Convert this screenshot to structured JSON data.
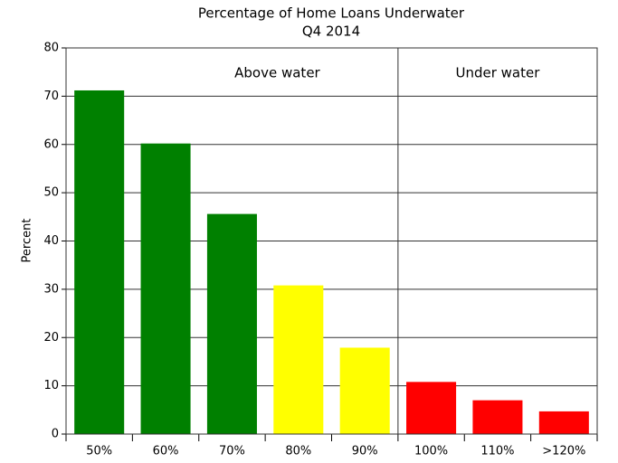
{
  "chart_data": {
    "type": "bar",
    "title": "Percentage of Home Loans Underwater",
    "subtitle": "Q4 2014",
    "y_label": "Percent",
    "categories": [
      "50%",
      "60%",
      "70%",
      "80%",
      "90%",
      "100%",
      "110%",
      ">120%"
    ],
    "values": [
      71.2,
      60.2,
      45.6,
      30.8,
      17.9,
      10.8,
      7.0,
      4.7
    ],
    "colors": [
      "#008000",
      "#008000",
      "#008000",
      "#ffff00",
      "#ffff00",
      "#ff0000",
      "#ff0000",
      "#ff0000"
    ],
    "annotations": [
      "Above water",
      "Under water"
    ],
    "ylim": [
      0,
      80
    ],
    "yticks": [
      0,
      10,
      20,
      30,
      40,
      50,
      60,
      70,
      80
    ],
    "grid": true
  }
}
